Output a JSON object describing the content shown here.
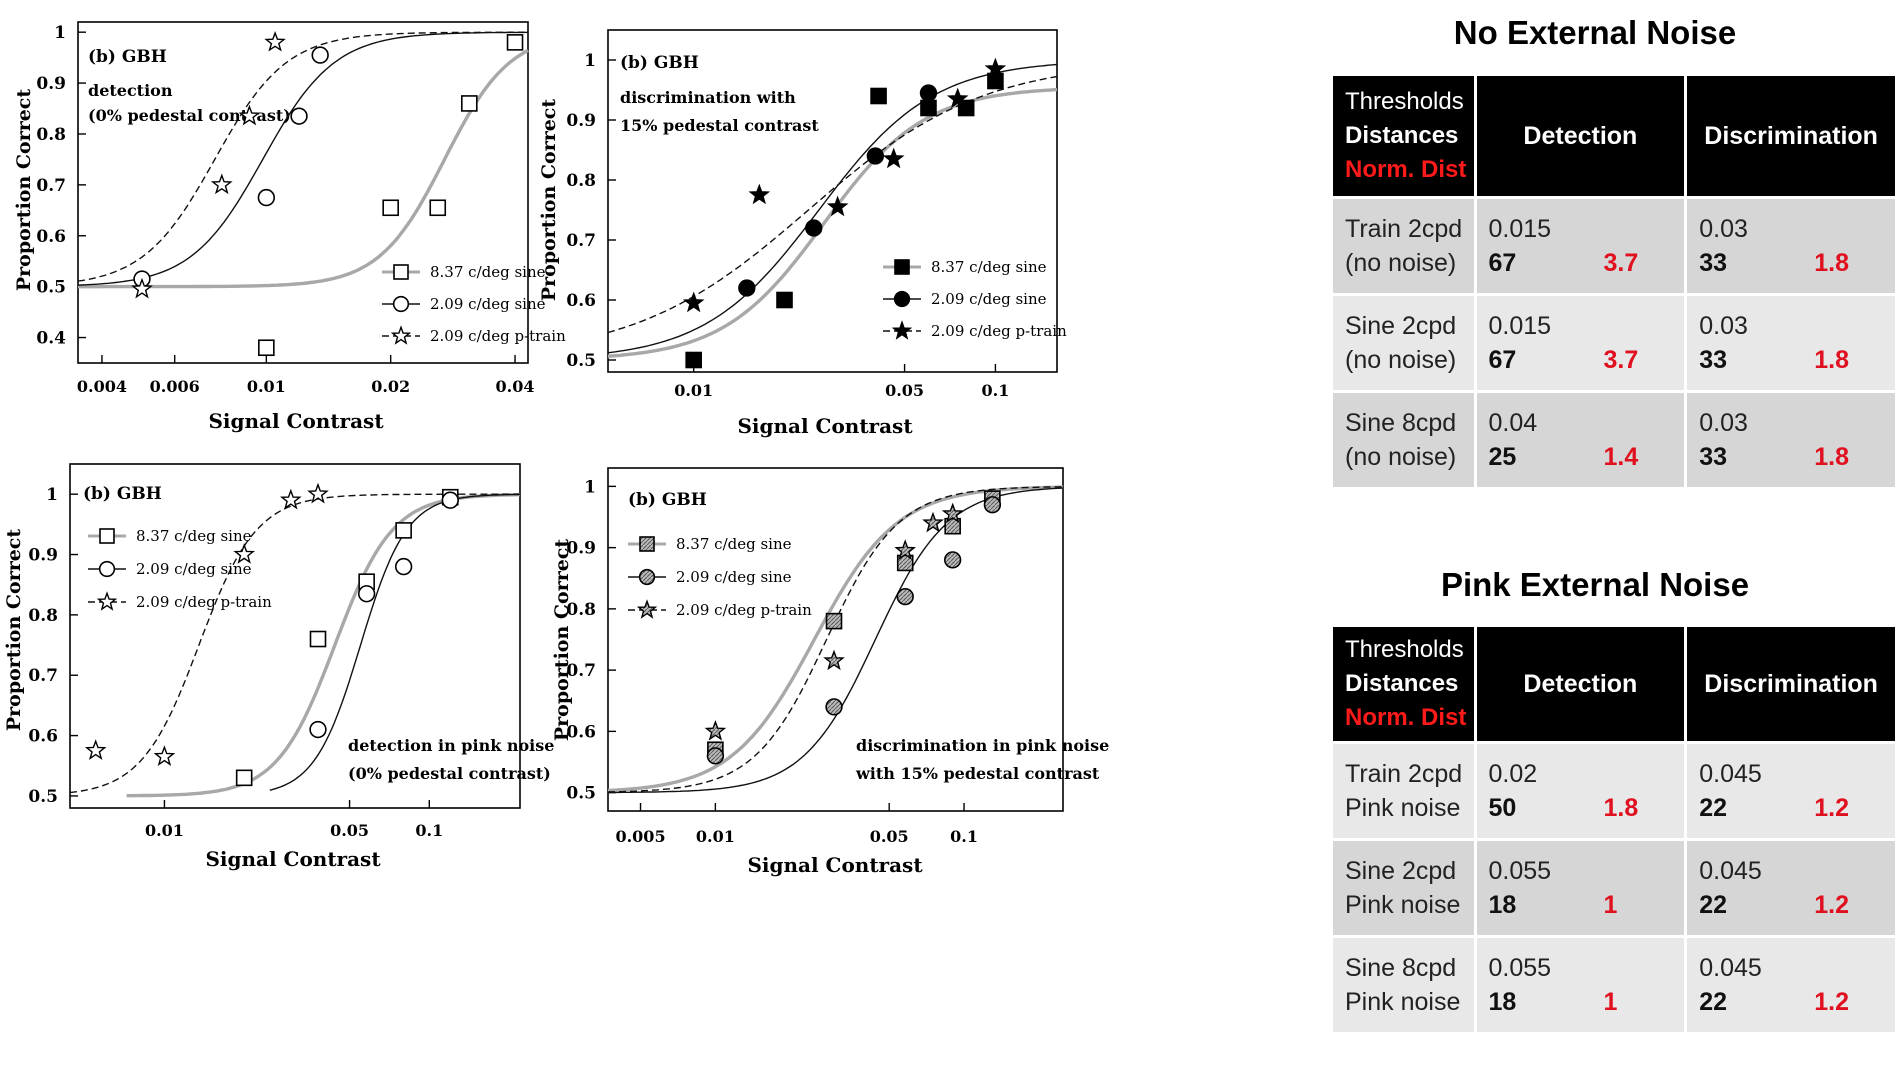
{
  "chart_data": [
    {
      "type": "scatter",
      "panel_label": "(b) GBH",
      "annotation": [
        "detection",
        "(0% pedestal contrast)"
      ],
      "xlabel": "Signal Contrast",
      "ylabel": "Proportion Correct",
      "xscale": "log",
      "xlim": [
        0.0035,
        0.043
      ],
      "ylim": [
        0.35,
        1.02
      ],
      "xticks": [
        0.004,
        0.006,
        0.01,
        0.02,
        0.04
      ],
      "xtick_labels": [
        "0.004",
        "0.006",
        "0.01",
        "0.02",
        "0.04"
      ],
      "yticks": [
        0.4,
        0.5,
        0.6,
        0.7,
        0.8,
        0.9,
        1
      ],
      "ytick_labels": [
        "0.4",
        "0.5",
        "0.6",
        "0.7",
        "0.8",
        "0.9",
        "1"
      ],
      "legend_position": "bottom-right",
      "series": [
        {
          "name": "8.37 c/deg sine",
          "marker": "square-open",
          "curve": "gray",
          "x": [
            0.01,
            0.02,
            0.026,
            0.031,
            0.04
          ],
          "y": [
            0.38,
            0.655,
            0.655,
            0.86,
            0.98
          ],
          "fit": {
            "x50": 0.027,
            "slope": 5.5
          }
        },
        {
          "name": "2.09 c/deg sine",
          "marker": "circle-open",
          "curve": "solid",
          "x": [
            0.005,
            0.01,
            0.012,
            0.0135
          ],
          "y": [
            0.515,
            0.675,
            0.835,
            0.955
          ],
          "fit": {
            "x50": 0.0098,
            "slope": 5.0
          }
        },
        {
          "name": "2.09 c/deg p-train",
          "marker": "star-open",
          "curve": "dashed",
          "x": [
            0.005,
            0.0078,
            0.0091,
            0.0105
          ],
          "y": [
            0.495,
            0.7,
            0.835,
            0.98
          ],
          "fit": {
            "x50": 0.0075,
            "slope": 5.0
          }
        }
      ]
    },
    {
      "type": "scatter",
      "panel_label": "(b) GBH",
      "annotation": [
        "discrimination with",
        "15% pedestal contrast"
      ],
      "xlabel": "Signal Contrast",
      "ylabel": "Proportion Correct",
      "xscale": "log",
      "xlim": [
        0.0052,
        0.16
      ],
      "ylim": [
        0.48,
        1.05
      ],
      "xticks": [
        0.01,
        0.05,
        0.1
      ],
      "xtick_labels": [
        "0.01",
        "0.05",
        "0.1"
      ],
      "yticks": [
        0.5,
        0.6,
        0.7,
        0.8,
        0.9,
        1
      ],
      "ytick_labels": [
        "0.5",
        "0.6",
        "0.7",
        "0.8",
        "0.9",
        "1"
      ],
      "legend_position": "bottom-right",
      "series": [
        {
          "name": "8.37 c/deg sine",
          "marker": "square-filled",
          "curve": "gray",
          "x": [
            0.01,
            0.02,
            0.041,
            0.06,
            0.08,
            0.1
          ],
          "y": [
            0.5,
            0.6,
            0.94,
            0.92,
            0.92,
            0.965
          ],
          "fit": {
            "x50": 0.027,
            "slope": 2.6,
            "max": 0.955
          }
        },
        {
          "name": "2.09 c/deg sine",
          "marker": "circle-filled",
          "curve": "solid",
          "x": [
            0.015,
            0.025,
            0.04,
            0.06
          ],
          "y": [
            0.62,
            0.72,
            0.84,
            0.945
          ],
          "fit": {
            "x50": 0.026,
            "slope": 2.3
          }
        },
        {
          "name": "2.09 c/deg p-train",
          "marker": "star-filled",
          "curve": "dashed",
          "x": [
            0.01,
            0.0165,
            0.03,
            0.046,
            0.075,
            0.1
          ],
          "y": [
            0.595,
            0.775,
            0.755,
            0.835,
            0.935,
            0.985
          ],
          "fit": {
            "x50": 0.024,
            "slope": 1.5
          }
        }
      ]
    },
    {
      "type": "scatter",
      "panel_label": "(b) GBH",
      "annotation": [
        "detection in pink noise",
        "(0% pedestal contrast)"
      ],
      "xlabel": "Signal Contrast",
      "ylabel": "Proportion Correct",
      "xscale": "log",
      "xlim": [
        0.0044,
        0.22
      ],
      "ylim": [
        0.48,
        1.05
      ],
      "xticks": [
        0.01,
        0.05,
        0.1
      ],
      "xtick_labels": [
        "0.01",
        "0.05",
        "0.1"
      ],
      "yticks": [
        0.5,
        0.6,
        0.7,
        0.8,
        0.9,
        1
      ],
      "ytick_labels": [
        "0.5",
        "0.6",
        "0.7",
        "0.8",
        "0.9",
        "1"
      ],
      "legend_position": "top-left",
      "series": [
        {
          "name": "8.37 c/deg sine",
          "marker": "square-open",
          "curve": "gray",
          "x": [
            0.02,
            0.038,
            0.058,
            0.08,
            0.12
          ],
          "y": [
            0.53,
            0.76,
            0.855,
            0.94,
            0.995
          ],
          "fit": {
            "x50": 0.044,
            "slope": 4.0
          }
        },
        {
          "name": "2.09 c/deg sine",
          "marker": "circle-open",
          "curve": "solid",
          "x": [
            0.038,
            0.058,
            0.08,
            0.12
          ],
          "y": [
            0.61,
            0.835,
            0.88,
            0.99
          ],
          "fit": {
            "x50": 0.055,
            "slope": 5.0
          }
        },
        {
          "name": "2.09 c/deg p-train",
          "marker": "star-open",
          "curve": "dashed",
          "x": [
            0.0055,
            0.01,
            0.02,
            0.03,
            0.038
          ],
          "y": [
            0.575,
            0.565,
            0.9,
            0.99,
            1.0
          ],
          "fit": {
            "x50": 0.0135,
            "slope": 4.0
          }
        }
      ]
    },
    {
      "type": "scatter",
      "panel_label": "(b) GBH",
      "annotation": [
        "discrimination in pink noise",
        "with 15% pedestal contrast"
      ],
      "xlabel": "Signal Contrast",
      "ylabel": "Proportion Correct",
      "xscale": "log",
      "xlim": [
        0.0037,
        0.25
      ],
      "ylim": [
        0.47,
        1.03
      ],
      "xticks": [
        0.005,
        0.01,
        0.05,
        0.1
      ],
      "xtick_labels": [
        "0.005",
        "0.01",
        "0.05",
        "0.1"
      ],
      "yticks": [
        0.5,
        0.6,
        0.7,
        0.8,
        0.9,
        1
      ],
      "ytick_labels": [
        "0.5",
        "0.6",
        "0.7",
        "0.8",
        "0.9",
        "1"
      ],
      "legend_position": "top-left",
      "series": [
        {
          "name": "8.37 c/deg sine",
          "marker": "square-hatched",
          "curve": "gray",
          "x": [
            0.01,
            0.03,
            0.058,
            0.09,
            0.13
          ],
          "y": [
            0.57,
            0.78,
            0.875,
            0.935,
            0.98
          ],
          "fit": {
            "x50": 0.025,
            "slope": 2.6
          }
        },
        {
          "name": "2.09 c/deg sine",
          "marker": "circle-hatched",
          "curve": "solid",
          "x": [
            0.01,
            0.03,
            0.058,
            0.09,
            0.13
          ],
          "y": [
            0.56,
            0.64,
            0.82,
            0.88,
            0.97
          ],
          "fit": {
            "x50": 0.044,
            "slope": 3.0
          }
        },
        {
          "name": "2.09 c/deg p-train",
          "marker": "star-hatched",
          "curve": "dashed",
          "x": [
            0.01,
            0.03,
            0.058,
            0.075,
            0.09
          ],
          "y": [
            0.6,
            0.715,
            0.895,
            0.94,
            0.955
          ],
          "fit": {
            "x50": 0.028,
            "slope": 3.0
          }
        }
      ]
    }
  ],
  "tables": [
    {
      "title": "No External Noise",
      "header": {
        "line1": "Thresholds",
        "line2": "Distances",
        "line3": "Norm. Dist",
        "col1": "Detection",
        "col2": "Discrimination"
      },
      "rows": [
        {
          "name1": "Train 2cpd",
          "name2": "(no noise)",
          "det_th": "0.015",
          "det_dist": "67",
          "det_norm": "3.7",
          "dis_th": "0.03",
          "dis_dist": "33",
          "dis_norm": "1.8"
        },
        {
          "name1": "Sine 2cpd",
          "name2": "(no noise)",
          "det_th": "0.015",
          "det_dist": "67",
          "det_norm": "3.7",
          "dis_th": "0.03",
          "dis_dist": "33",
          "dis_norm": "1.8"
        },
        {
          "name1": "Sine 8cpd",
          "name2": "(no noise)",
          "det_th": "0.04",
          "det_dist": "25",
          "det_norm": "1.4",
          "dis_th": "0.03",
          "dis_dist": "33",
          "dis_norm": "1.8"
        }
      ]
    },
    {
      "title": "Pink External Noise",
      "header": {
        "line1": "Thresholds",
        "line2": "Distances",
        "line3": "Norm. Dist",
        "col1": "Detection",
        "col2": "Discrimination"
      },
      "rows": [
        {
          "name1": "Train 2cpd",
          "name2": "Pink noise",
          "det_th": "0.02",
          "det_dist": "50",
          "det_norm": "1.8",
          "dis_th": "0.045",
          "dis_dist": "22",
          "dis_norm": "1.2"
        },
        {
          "name1": "Sine 2cpd",
          "name2": "Pink noise",
          "det_th": "0.055",
          "det_dist": "18",
          "det_norm": "1",
          "dis_th": "0.045",
          "dis_dist": "22",
          "dis_norm": "1.2"
        },
        {
          "name1": "Sine 8cpd",
          "name2": "Pink noise",
          "det_th": "0.055",
          "det_dist": "18",
          "det_norm": "1",
          "dis_th": "0.045",
          "dis_dist": "22",
          "dis_norm": "1.2"
        }
      ]
    }
  ]
}
